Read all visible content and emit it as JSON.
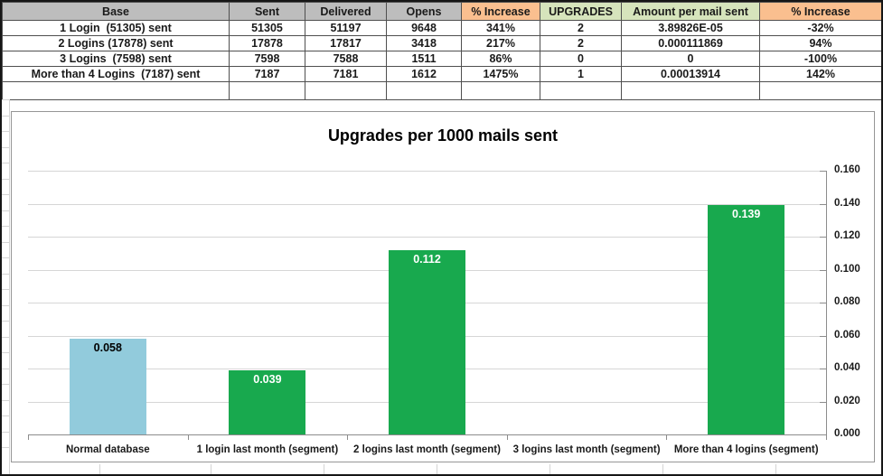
{
  "table": {
    "headers": [
      {
        "label": "Base",
        "bg_color": "#BDBDBD"
      },
      {
        "label": "Sent",
        "bg_color": "#BDBDBD"
      },
      {
        "label": "Delivered",
        "bg_color": "#BDBDBD"
      },
      {
        "label": "Opens",
        "bg_color": "#BDBDBD"
      },
      {
        "label": "% Increase",
        "bg_color": "#FABF8F"
      },
      {
        "label": "UPGRADES",
        "bg_color": "#D6E4BC"
      },
      {
        "label": "Amount per mail sent",
        "bg_color": "#D6E4BC"
      },
      {
        "label": "% Increase",
        "bg_color": "#FABF8F"
      }
    ],
    "rows": [
      [
        "1 Login  (51305) sent",
        "51305",
        "51197",
        "9648",
        "341%",
        "2",
        "3.89826E-05",
        "-32%"
      ],
      [
        "2 Logins (17878) sent",
        "17878",
        "17817",
        "3418",
        "217%",
        "2",
        "0.000111869",
        "94%"
      ],
      [
        "3 Logins  (7598) sent",
        "7598",
        "7588",
        "1511",
        "86%",
        "0",
        "0",
        "-100%"
      ],
      [
        "More than 4 Logins  (7187) sent",
        "7187",
        "7181",
        "1612",
        "1475%",
        "1",
        "0.00013914",
        "142%"
      ]
    ]
  },
  "chart_data": {
    "type": "bar",
    "title": "Upgrades per 1000 mails sent",
    "categories": [
      "Normal database",
      "1 login last month (segment)",
      "2 logins last month (segment)",
      "3 logins last month (segment)",
      "More than 4 logins (segment)"
    ],
    "values": [
      0.058,
      0.039,
      0.112,
      0,
      0.139
    ],
    "data_labels": [
      "0.058",
      "0.039",
      "0.112",
      "",
      "0.139"
    ],
    "bar_colors": [
      "#92CBDC",
      "#18A94E",
      "#18A94E",
      "#18A94E",
      "#18A94E"
    ],
    "data_label_colors": [
      "#000000",
      "#FFFFFF",
      "#FFFFFF",
      "#FFFFFF",
      "#FFFFFF"
    ],
    "xlabel": "",
    "ylabel": "",
    "ylim": [
      0,
      0.16
    ],
    "yticks": [
      "0.000",
      "0.020",
      "0.040",
      "0.060",
      "0.080",
      "0.100",
      "0.120",
      "0.140",
      "0.160"
    ],
    "axis_side": "right",
    "grid": true,
    "legend": false
  },
  "colors": {
    "bar_blue": "#92CBDC",
    "bar_green": "#18A94E",
    "header_gray": "#BDBDBD",
    "header_orange": "#FABF8F",
    "header_green": "#D6E4BC",
    "gridline": "#D6D6D6",
    "axis": "#8C8C8C"
  }
}
